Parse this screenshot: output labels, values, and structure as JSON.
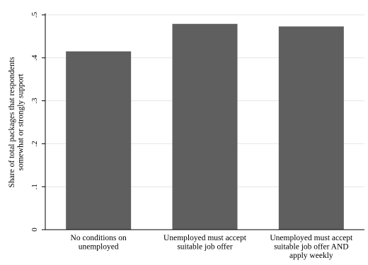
{
  "chart_data": {
    "type": "bar",
    "categories": [
      [
        "No conditions on",
        "unemployed"
      ],
      [
        "Unemployed must accept",
        "suitable job offer"
      ],
      [
        "Unemployed must accept",
        "suitable job offer AND",
        "apply weekly"
      ]
    ],
    "values": [
      0.415,
      0.479,
      0.473
    ],
    "ylabel": [
      "Share of total packages that respondents",
      "somewhat or strongly support"
    ],
    "ylim": [
      0,
      0.5
    ],
    "yticks": [
      0,
      0.1,
      0.2,
      0.3,
      0.4,
      0.5
    ],
    "ytick_labels": [
      "0",
      ".1",
      ".2",
      ".3",
      ".4",
      ".5"
    ],
    "grid": true,
    "bar_color": "#5f5f5f",
    "grid_color": "#e6e6e6"
  }
}
